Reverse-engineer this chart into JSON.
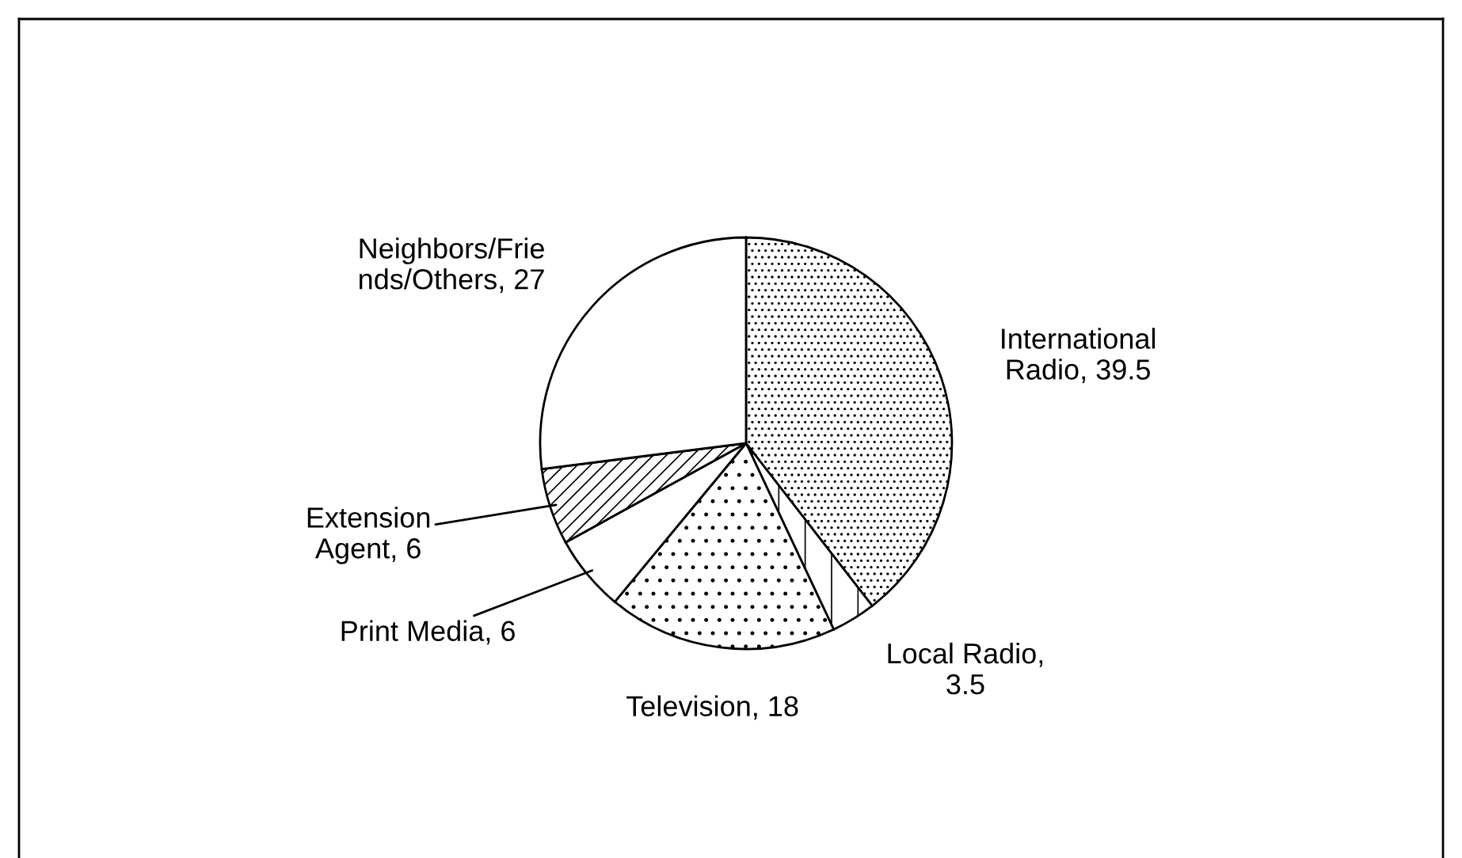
{
  "chart_data": {
    "type": "pie",
    "categories": [
      "International\nRadio",
      "Local Radio",
      "Television",
      "Print Media",
      "Extension\nAgent",
      "Neighbors/Frie\nnds/Others"
    ],
    "values": [
      39.5,
      3.5,
      18,
      6,
      6,
      27
    ],
    "value_labels": [
      ", 39.5",
      ",\n3.5",
      ", 18",
      ", 6",
      ", 6",
      ", 27"
    ],
    "colors": [
      "#000000",
      "#000000",
      "#000000",
      "#000000",
      "#000000",
      "#ffffff"
    ]
  }
}
